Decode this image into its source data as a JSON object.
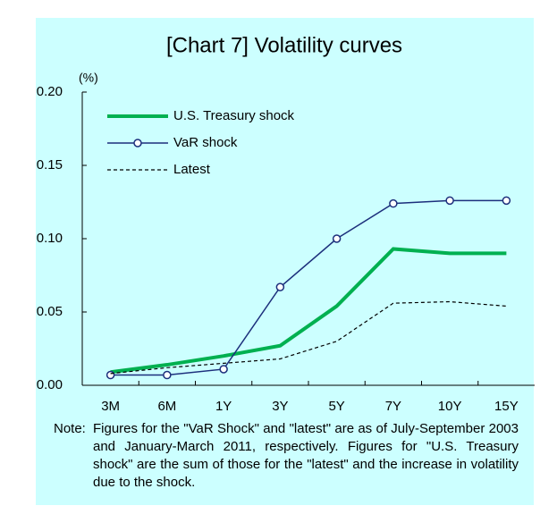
{
  "chart_data": {
    "type": "line",
    "title": "[Chart 7] Volatility curves",
    "y_unit": "(%)",
    "categories": [
      "3M",
      "6M",
      "1Y",
      "3Y",
      "5Y",
      "7Y",
      "10Y",
      "15Y"
    ],
    "series": [
      {
        "name": "U.S. Treasury shock",
        "color": "#00b050",
        "width": 4,
        "style": "solid",
        "marker": "none",
        "values": [
          0.009,
          0.014,
          0.02,
          0.027,
          0.054,
          0.093,
          0.09,
          0.09
        ]
      },
      {
        "name": "VaR shock",
        "color": "#1c2f7c",
        "width": 1.5,
        "style": "solid",
        "marker": "circle",
        "values": [
          0.007,
          0.007,
          0.011,
          0.067,
          0.1,
          0.124,
          0.126,
          0.126
        ]
      },
      {
        "name": "Latest",
        "color": "#000000",
        "width": 1.2,
        "style": "dashed",
        "marker": "none",
        "values": [
          0.008,
          0.012,
          0.015,
          0.018,
          0.03,
          0.056,
          0.057,
          0.054
        ]
      }
    ],
    "ylim": [
      0,
      0.2
    ],
    "yticks": [
      {
        "value": 0,
        "label": "0.00"
      },
      {
        "value": 0.05,
        "label": "0.05"
      },
      {
        "value": 0.1,
        "label": "0.10"
      },
      {
        "value": 0.15,
        "label": "0.15"
      },
      {
        "value": 0.2,
        "label": "0.20"
      }
    ],
    "grid": false,
    "legend": "upper-left",
    "note_label": "Note:",
    "note": "Figures for the \"VaR Shock\" and \"latest\" are as of July-September 2003 and January-March 2011, respectively. Figures for \"U.S. Treasury shock\" are the sum of those for the \"latest\" and the increase in volatility due to the shock."
  }
}
